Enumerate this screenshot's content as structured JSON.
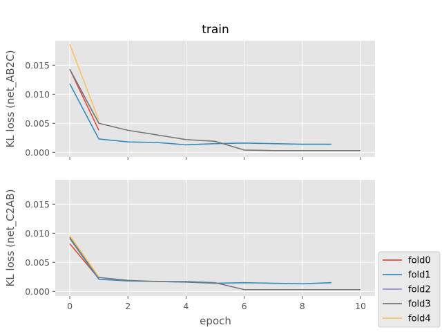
{
  "title": "train",
  "colors": {
    "fold0": "#E24A33",
    "fold1": "#348ABD",
    "fold2": "#988ED5",
    "fold3": "#777777",
    "fold4": "#FBC15E",
    "axes_bg": "#E5E5E5",
    "grid": "#FFFFFF"
  },
  "chart_data": [
    {
      "type": "line",
      "title": "train",
      "xlabel": "",
      "ylabel": "KL loss (net_AB2C)",
      "xlim": [
        -0.5,
        10.5
      ],
      "ylim": [
        -0.0008,
        0.0192
      ],
      "xticks": [
        0,
        2,
        4,
        6,
        8,
        10
      ],
      "xtick_labels_visible": false,
      "yticks": [
        0.0,
        0.005,
        0.01,
        0.015
      ],
      "ytick_labels": [
        "0.000",
        "0.005",
        "0.010",
        "0.015"
      ],
      "grid": true,
      "series": [
        {
          "name": "fold0",
          "x": [
            0,
            1
          ],
          "y": [
            0.0143,
            0.0038
          ]
        },
        {
          "name": "fold1",
          "x": [
            0,
            1,
            2,
            3,
            4,
            5,
            6,
            7,
            8,
            9
          ],
          "y": [
            0.0118,
            0.0023,
            0.0018,
            0.0017,
            0.0013,
            0.0015,
            0.0016,
            0.0015,
            0.0014,
            0.0014
          ]
        },
        {
          "name": "fold2",
          "x": [
            0,
            1
          ],
          "y": [
            0.0143,
            0.005
          ]
        },
        {
          "name": "fold3",
          "x": [
            0,
            1,
            2,
            3,
            4,
            5,
            6,
            7,
            8,
            9,
            10
          ],
          "y": [
            0.0143,
            0.005,
            0.0038,
            0.003,
            0.0022,
            0.0019,
            0.0004,
            0.0003,
            0.0003,
            0.0003,
            0.0003
          ]
        },
        {
          "name": "fold4",
          "x": [
            0,
            1
          ],
          "y": [
            0.0186,
            0.0055
          ]
        }
      ]
    },
    {
      "type": "line",
      "xlabel": "epoch",
      "ylabel": "KL loss (net_C2AB)",
      "xlim": [
        -0.5,
        10.5
      ],
      "ylim": [
        -0.0008,
        0.0192
      ],
      "xticks": [
        0,
        2,
        4,
        6,
        8,
        10
      ],
      "xtick_labels": [
        "0",
        "2",
        "4",
        "6",
        "8",
        "10"
      ],
      "yticks": [
        0.0,
        0.005,
        0.01,
        0.015
      ],
      "ytick_labels": [
        "0.000",
        "0.005",
        "0.010",
        "0.015"
      ],
      "grid": true,
      "series": [
        {
          "name": "fold0",
          "x": [
            0,
            1
          ],
          "y": [
            0.0082,
            0.0022
          ]
        },
        {
          "name": "fold1",
          "x": [
            0,
            1,
            2,
            3,
            4,
            5,
            6,
            7,
            8,
            9
          ],
          "y": [
            0.0091,
            0.0021,
            0.0018,
            0.0017,
            0.0016,
            0.0014,
            0.0015,
            0.0014,
            0.0013,
            0.0015
          ]
        },
        {
          "name": "fold2",
          "x": [
            0,
            1
          ],
          "y": [
            0.0093,
            0.0024
          ]
        },
        {
          "name": "fold3",
          "x": [
            0,
            1,
            2,
            3,
            4,
            5,
            6,
            7,
            8,
            9,
            10
          ],
          "y": [
            0.0093,
            0.0024,
            0.0019,
            0.0017,
            0.0017,
            0.0015,
            0.0003,
            0.0003,
            0.0003,
            0.0003,
            0.0003
          ]
        },
        {
          "name": "fold4",
          "x": [
            0,
            1
          ],
          "y": [
            0.0096,
            0.0025
          ]
        }
      ]
    }
  ],
  "legend": {
    "placement": "bottom-right",
    "entries": [
      "fold0",
      "fold1",
      "fold2",
      "fold3",
      "fold4"
    ]
  }
}
